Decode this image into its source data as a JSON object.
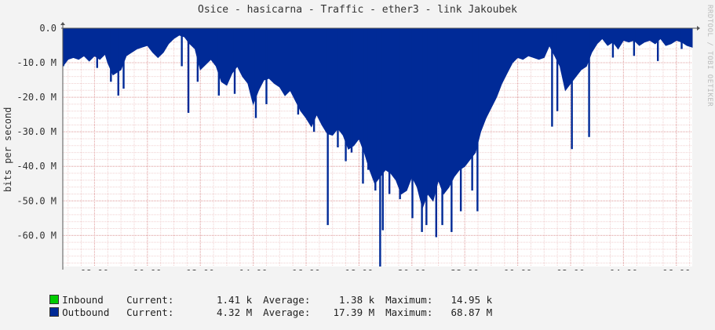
{
  "chart_data": {
    "type": "area",
    "title": "Osice - hasicarna - Traffic - ether3 - link Jakoubek",
    "ylabel": "bits per second",
    "credit": "RRDTOOL / TOBI OETIKER",
    "ylim": [
      -69000000,
      0
    ],
    "yticks": [
      {
        "value": 0,
        "label": "0.0"
      },
      {
        "value": -10000000,
        "label": "-10.0 M"
      },
      {
        "value": -20000000,
        "label": "-20.0 M"
      },
      {
        "value": -30000000,
        "label": "-30.0 M"
      },
      {
        "value": -40000000,
        "label": "-40.0 M"
      },
      {
        "value": -50000000,
        "label": "-50.0 M"
      },
      {
        "value": -60000000,
        "label": "-60.0 M"
      }
    ],
    "xlim": [
      6.8,
      30.6
    ],
    "xticks": [
      {
        "value": 8,
        "label": "08:00"
      },
      {
        "value": 10,
        "label": "10:00"
      },
      {
        "value": 12,
        "label": "12:00"
      },
      {
        "value": 14,
        "label": "14:00"
      },
      {
        "value": 16,
        "label": "16:00"
      },
      {
        "value": 18,
        "label": "18:00"
      },
      {
        "value": 20,
        "label": "20:00"
      },
      {
        "value": 22,
        "label": "22:00"
      },
      {
        "value": 24,
        "label": "00:00"
      },
      {
        "value": 26,
        "label": "02:00"
      },
      {
        "value": 28,
        "label": "04:00"
      },
      {
        "value": 30,
        "label": "06:00"
      }
    ],
    "grid": true,
    "colors": {
      "inbound": "#00cc00",
      "outbound": "#002a97",
      "grid": "#e0a0a0",
      "axis": "#555555"
    },
    "series": [
      {
        "name": "Outbound",
        "x": [
          6.8,
          7.0,
          7.2,
          7.4,
          7.6,
          7.8,
          8.0,
          8.2,
          8.4,
          8.5,
          8.7,
          9.0,
          9.2,
          9.4,
          9.6,
          9.8,
          10.0,
          10.2,
          10.4,
          10.6,
          10.8,
          11.0,
          11.2,
          11.4,
          11.6,
          11.8,
          12.0,
          12.2,
          12.4,
          12.6,
          12.8,
          13.0,
          13.2,
          13.4,
          13.6,
          13.8,
          14.0,
          14.2,
          14.4,
          14.6,
          14.8,
          15.0,
          15.2,
          15.4,
          15.6,
          15.8,
          16.0,
          16.2,
          16.4,
          16.6,
          16.8,
          17.0,
          17.2,
          17.4,
          17.6,
          17.8,
          18.0,
          18.2,
          18.4,
          18.6,
          18.8,
          19.0,
          19.2,
          19.4,
          19.6,
          19.8,
          20.0,
          20.2,
          20.4,
          20.6,
          20.8,
          21.0,
          21.2,
          21.4,
          21.6,
          21.8,
          22.0,
          22.2,
          22.4,
          22.6,
          22.8,
          23.0,
          23.2,
          23.4,
          23.6,
          23.8,
          24.0,
          24.2,
          24.4,
          24.6,
          24.8,
          25.0,
          25.2,
          25.4,
          25.6,
          25.8,
          26.0,
          26.2,
          26.4,
          26.6,
          26.8,
          27.0,
          27.2,
          27.4,
          27.6,
          27.8,
          28.0,
          28.2,
          28.4,
          28.6,
          28.8,
          29.0,
          29.2,
          29.4,
          29.6,
          29.8,
          30.0,
          30.2,
          30.4,
          30.6
        ],
        "values": [
          -11.0,
          -9.0,
          -8.5,
          -9.0,
          -8.0,
          -9.5,
          -8.0,
          -9.0,
          -7.5,
          -10.0,
          -13.5,
          -12.0,
          -8.0,
          -7.0,
          -6.0,
          -5.5,
          -5.0,
          -7.0,
          -8.5,
          -7.0,
          -4.5,
          -3.0,
          -2.0,
          -2.5,
          -4.5,
          -6.0,
          -12.0,
          -10.5,
          -9.0,
          -11.0,
          -15.5,
          -16.5,
          -13.0,
          -11.0,
          -14.0,
          -16.0,
          -22.0,
          -18.0,
          -15.0,
          -14.5,
          -16.0,
          -17.0,
          -19.5,
          -18.0,
          -21.0,
          -24.0,
          -26.0,
          -28.5,
          -25.0,
          -28.0,
          -30.5,
          -31.0,
          -29.0,
          -31.0,
          -35.0,
          -34.0,
          -32.0,
          -36.0,
          -41.0,
          -45.0,
          -43.0,
          -41.0,
          -42.0,
          -44.0,
          -48.0,
          -47.0,
          -43.0,
          -46.0,
          -52.0,
          -48.0,
          -50.0,
          -44.0,
          -48.0,
          -46.0,
          -43.0,
          -41.0,
          -40.0,
          -38.0,
          -36.0,
          -30.0,
          -26.0,
          -23.0,
          -20.0,
          -16.0,
          -13.0,
          -10.0,
          -8.5,
          -9.0,
          -8.0,
          -8.5,
          -9.0,
          -8.5,
          -5.0,
          -8.0,
          -11.0,
          -18.0,
          -16.0,
          -14.0,
          -12.0,
          -11.0,
          -7.0,
          -4.5,
          -3.0,
          -5.0,
          -4.0,
          -6.0,
          -3.5,
          -4.0,
          -3.5,
          -5.0,
          -4.0,
          -3.5,
          -4.5,
          -3.0,
          -5.0,
          -4.5,
          -3.5,
          -4.0,
          -5.0,
          -5.5
        ],
        "spikes": [
          {
            "x": 6.82,
            "y": -11.0
          },
          {
            "x": 8.1,
            "y": -11.5
          },
          {
            "x": 8.62,
            "y": -15.5
          },
          {
            "x": 8.9,
            "y": -19.5
          },
          {
            "x": 9.1,
            "y": -17.5
          },
          {
            "x": 11.3,
            "y": -11.0
          },
          {
            "x": 11.55,
            "y": -24.5
          },
          {
            "x": 11.9,
            "y": -15.5
          },
          {
            "x": 12.7,
            "y": -19.5
          },
          {
            "x": 13.3,
            "y": -19.0
          },
          {
            "x": 14.1,
            "y": -26.0
          },
          {
            "x": 14.5,
            "y": -22.0
          },
          {
            "x": 15.7,
            "y": -25.0
          },
          {
            "x": 16.3,
            "y": -30.0
          },
          {
            "x": 16.82,
            "y": -57.0
          },
          {
            "x": 17.2,
            "y": -34.5
          },
          {
            "x": 17.5,
            "y": -38.5
          },
          {
            "x": 17.72,
            "y": -36.0
          },
          {
            "x": 18.15,
            "y": -45.0
          },
          {
            "x": 18.35,
            "y": -41.0
          },
          {
            "x": 18.62,
            "y": -47.0
          },
          {
            "x": 18.8,
            "y": -69.0
          },
          {
            "x": 18.9,
            "y": -58.5
          },
          {
            "x": 19.15,
            "y": -48.0
          },
          {
            "x": 19.55,
            "y": -49.5
          },
          {
            "x": 20.02,
            "y": -55.0
          },
          {
            "x": 20.38,
            "y": -59.0
          },
          {
            "x": 20.55,
            "y": -57.0
          },
          {
            "x": 20.92,
            "y": -60.5
          },
          {
            "x": 21.15,
            "y": -57.0
          },
          {
            "x": 21.5,
            "y": -59.0
          },
          {
            "x": 21.85,
            "y": -53.0
          },
          {
            "x": 22.28,
            "y": -47.0
          },
          {
            "x": 22.48,
            "y": -53.0
          },
          {
            "x": 25.3,
            "y": -28.5
          },
          {
            "x": 25.5,
            "y": -24.0
          },
          {
            "x": 26.05,
            "y": -35.0
          },
          {
            "x": 26.7,
            "y": -31.5
          },
          {
            "x": 27.6,
            "y": -8.5
          },
          {
            "x": 28.4,
            "y": -8.0
          },
          {
            "x": 29.3,
            "y": -9.5
          },
          {
            "x": 30.2,
            "y": -6.0
          }
        ],
        "unit": "M"
      }
    ]
  },
  "legend": [
    {
      "name": "Inbound",
      "current_label": "Current:",
      "current": "1.41 k",
      "average_label": "Average:",
      "average": "1.38 k",
      "maximum_label": "Maximum:",
      "maximum": "14.95 k"
    },
    {
      "name": "Outbound",
      "current_label": "Current:",
      "current": "4.32 M",
      "average_label": "Average:",
      "average": "17.39 M",
      "maximum_label": "Maximum:",
      "maximum": "68.87 M"
    }
  ]
}
